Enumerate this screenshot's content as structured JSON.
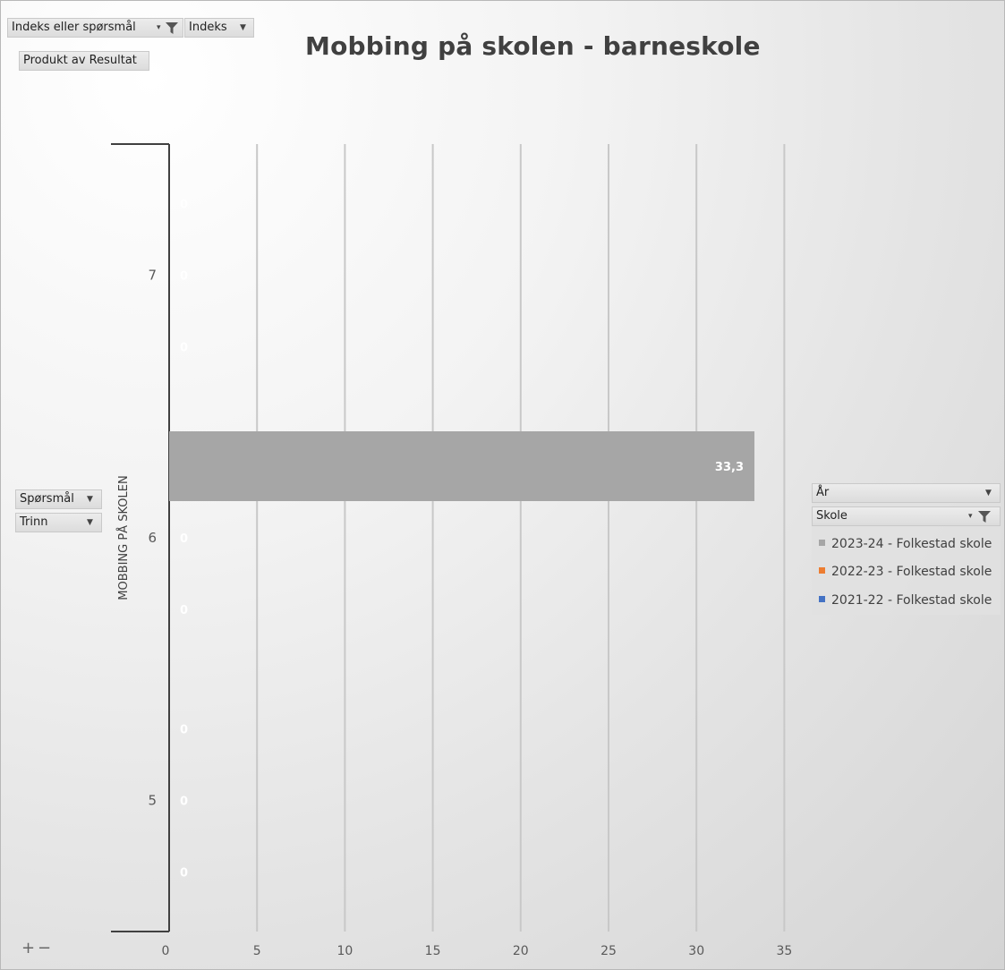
{
  "controls": {
    "filter_field_1": "Indeks eller spørsmål",
    "filter_field_2": "Indeks",
    "value_field": "Produkt av Resultat",
    "row_field_1": "Spørsmål",
    "row_field_2": "Trinn",
    "legend_field_1": "År",
    "legend_field_2": "Skole",
    "zoom_in": "+",
    "zoom_out": "−"
  },
  "colors": {
    "series_2023_24": "#a6a6a6",
    "series_2022_23": "#ed7d31",
    "series_2021_22": "#4472c4",
    "gridline": "#c8c8c8",
    "axis": "#404040"
  },
  "chart_data": {
    "type": "bar",
    "orientation": "horizontal",
    "title": "Mobbing på skolen - barneskole",
    "xlabel": "",
    "ylabel": "MOBBING PÅ SKOLEN",
    "xlim": [
      0,
      35
    ],
    "xticks": [
      0,
      5,
      10,
      15,
      20,
      25,
      30,
      35
    ],
    "grid": true,
    "legend_position": "right",
    "categories": [
      "7",
      "6",
      "5"
    ],
    "series": [
      {
        "name": "2023-24 - Folkestad skole",
        "values": [
          0,
          33.3,
          0
        ],
        "labels": [
          "0",
          "33,3",
          "0"
        ]
      },
      {
        "name": "2022-23 - Folkestad skole",
        "values": [
          0,
          0,
          0
        ],
        "labels": [
          "0",
          "0",
          "0"
        ]
      },
      {
        "name": "2021-22 - Folkestad skole",
        "values": [
          0,
          0,
          0
        ],
        "labels": [
          "0",
          "0",
          "0"
        ]
      }
    ]
  }
}
